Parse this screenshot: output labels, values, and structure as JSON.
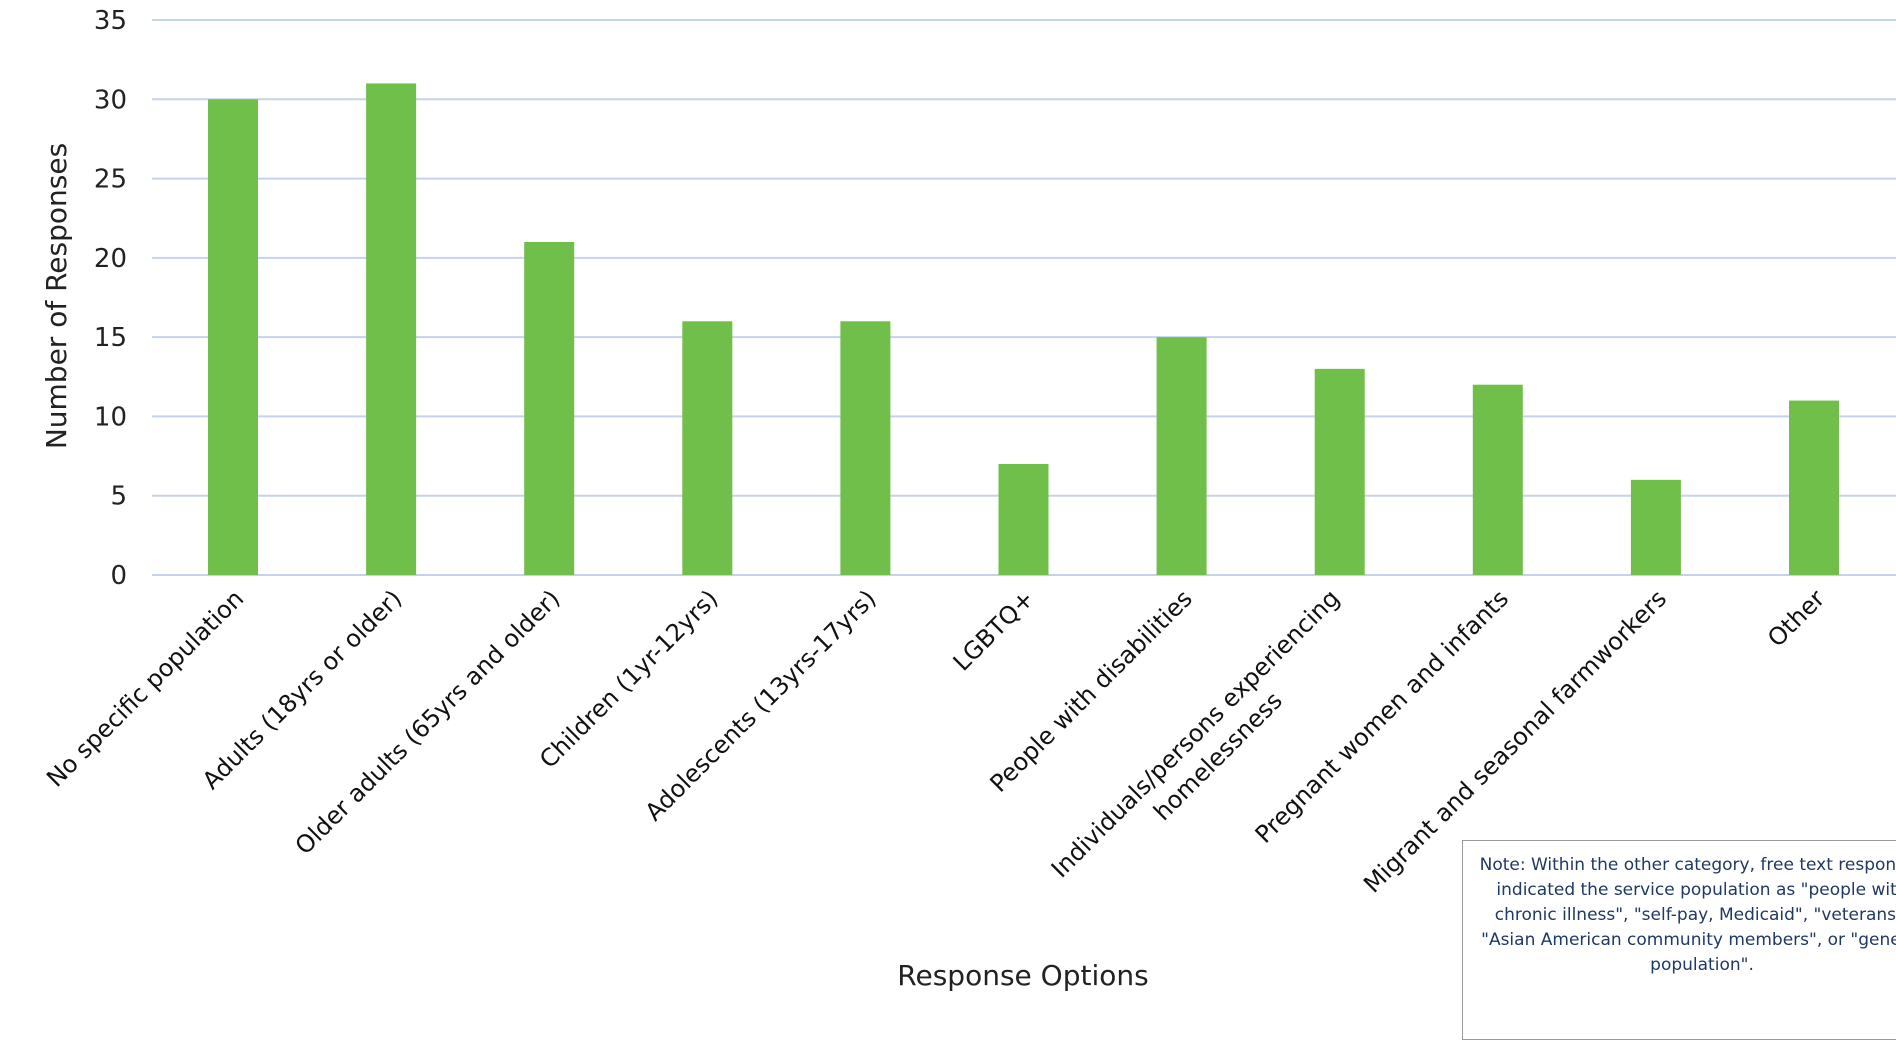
{
  "chart_data": {
    "type": "bar",
    "title": "",
    "xlabel": "Response Options",
    "ylabel": "Number of Responses",
    "ylim": [
      0,
      35
    ],
    "yticks": [
      0,
      5,
      10,
      15,
      20,
      25,
      30,
      35
    ],
    "grid": true,
    "legend": "none",
    "categories": [
      "No specific population",
      "Adults (18yrs or older)",
      "Older adults (65yrs and older)",
      "Children (1yr-12yrs)",
      "Adolescents (13yrs-17yrs)",
      "LGBTQ+",
      "People with disabilities",
      "Individuals/persons experiencing homelessness",
      "Pregnant women and infants",
      "Migrant and seasonal farmworkers",
      "Other"
    ],
    "category_lines": [
      [
        "No specific population"
      ],
      [
        "Adults (18yrs or older)"
      ],
      [
        "Older adults (65yrs and older)"
      ],
      [
        "Children (1yr-12yrs)"
      ],
      [
        "Adolescents (13yrs-17yrs)"
      ],
      [
        "LGBTQ+"
      ],
      [
        "People with disabilities"
      ],
      [
        "Individuals/persons experiencing",
        "homelessness"
      ],
      [
        "Pregnant women and infants"
      ],
      [
        "Migrant and seasonal farmworkers"
      ],
      [
        "Other"
      ]
    ],
    "values": [
      30,
      31,
      21,
      16,
      16,
      7,
      15,
      13,
      12,
      6,
      11
    ],
    "bar_color": "#70bf4a",
    "grid_color": "#c5d3ea",
    "note": "Note: Within the other category, free text responses indicated the service population as \"people with chronic illness\", \"self-pay, Medicaid\", \"veterans\", \"Asian American community members\", or \"general population\"."
  }
}
